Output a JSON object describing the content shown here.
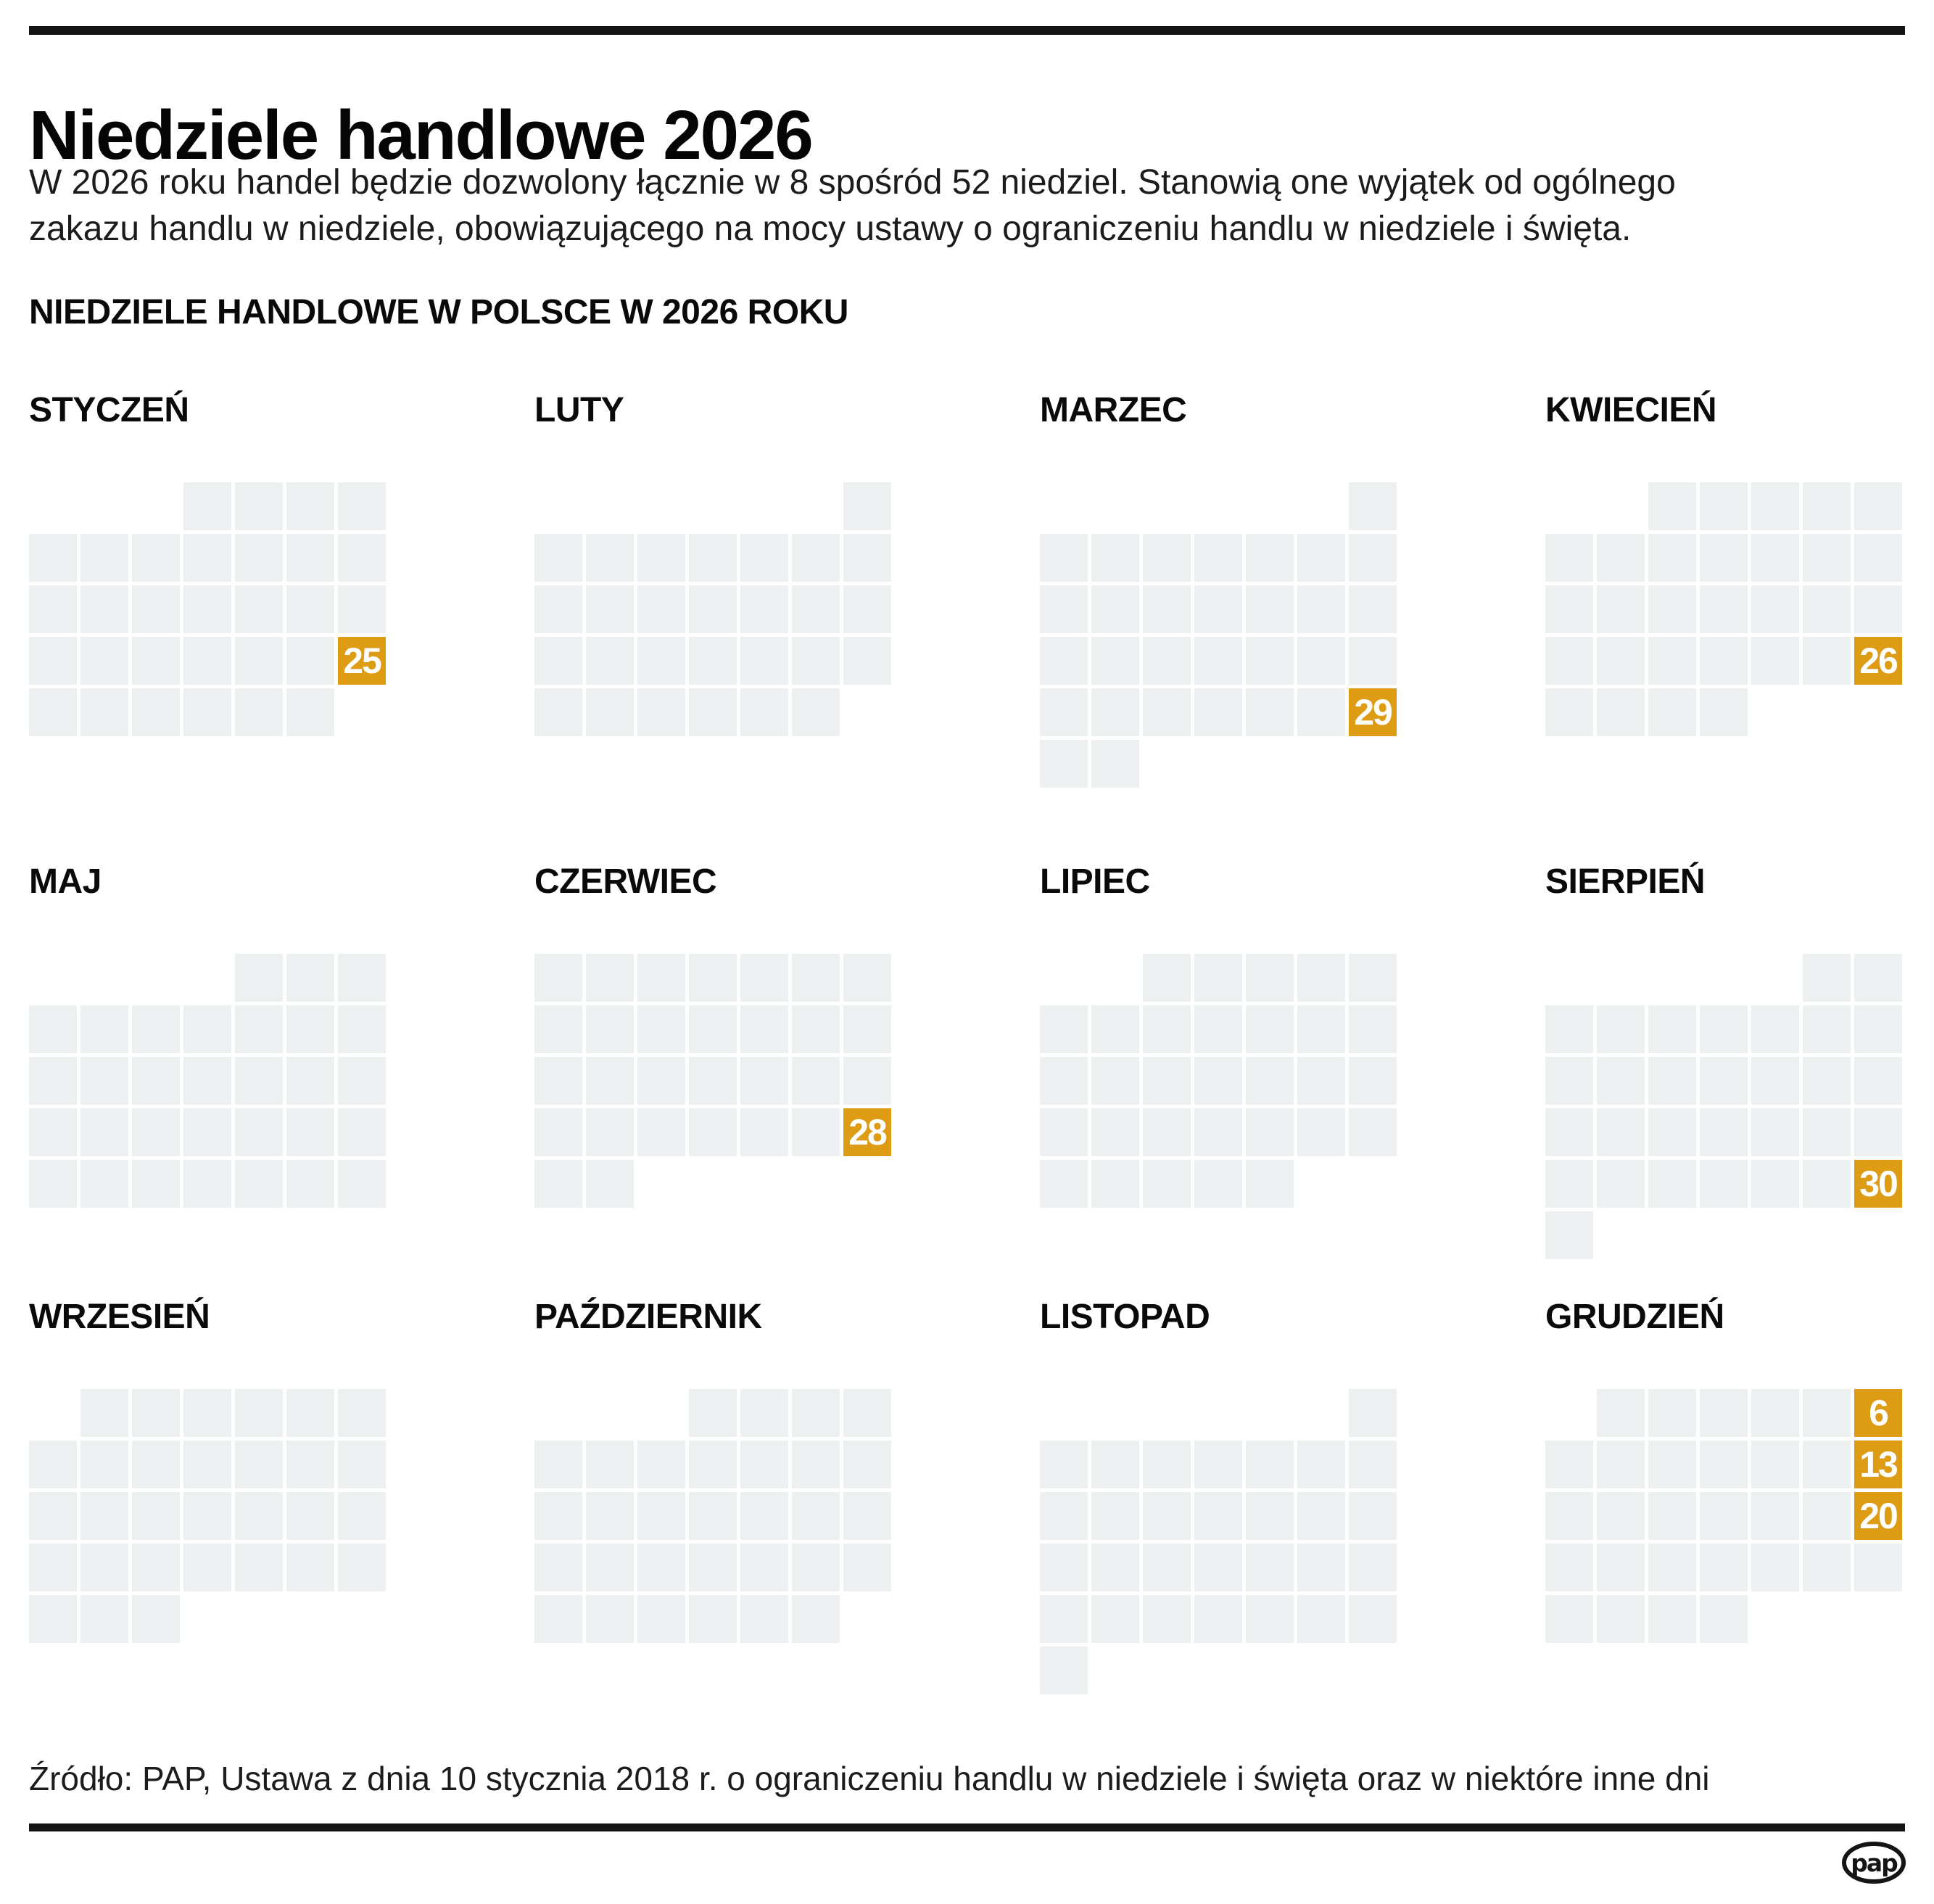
{
  "page": {
    "title": "Niedziele handlowe 2026",
    "intro_line1": "W 2026 roku handel będzie dozwolony łącznie w 8 spośród 52 niedziel. Stanowią one wyjątek od ogólnego",
    "intro_line2": "zakazu handlu w niedziele, obowiązującego na mocy ustawy o ograniczeniu handlu w niedziele i święta.",
    "section_header": "NIEDZIELE HANDLOWE W POLSCE W 2026 ROKU",
    "source": "Źródło: PAP, Ustawa z dnia 10 stycznia 2018 r. o ograniczeniu handlu w niedziele i święta oraz w niektóre inne dni",
    "logo_text": "pap"
  },
  "colors": {
    "accent_orange": "#de9b14",
    "cell_gray": "#ecf0f1",
    "bar_black": "#141414",
    "day_number_white": "#ffffff"
  },
  "chart_data": {
    "type": "calendar",
    "title": "NIEDZIELE HANDLOWE W POLSCE W 2026 ROKU",
    "year": "2026",
    "trading_sundays_count": "8",
    "all_sundays_count": "52",
    "week_starts_on": "monday",
    "trading_sundays": [
      {
        "month": "STYCZEŃ",
        "day": "25"
      },
      {
        "month": "MARZEC",
        "day": "29"
      },
      {
        "month": "KWIECIEŃ",
        "day": "26"
      },
      {
        "month": "CZERWIEC",
        "day": "28"
      },
      {
        "month": "SIERPIEŃ",
        "day": "30"
      },
      {
        "month": "GRUDZIEŃ",
        "day": "6"
      },
      {
        "month": "GRUDZIEŃ",
        "day": "13"
      },
      {
        "month": "GRUDZIEŃ",
        "day": "20"
      }
    ],
    "months": [
      {
        "name": "STYCZEŃ",
        "rows": [
          [
            4,
            4
          ],
          [
            1,
            7
          ],
          [
            1,
            7
          ],
          [
            1,
            7
          ],
          [
            1,
            6
          ]
        ],
        "highlights": [
          {
            "row": 4,
            "col": 7,
            "day": "25"
          }
        ]
      },
      {
        "name": "LUTY",
        "rows": [
          [
            7,
            1
          ],
          [
            1,
            7
          ],
          [
            1,
            7
          ],
          [
            1,
            7
          ],
          [
            1,
            6
          ]
        ],
        "highlights": []
      },
      {
        "name": "MARZEC",
        "rows": [
          [
            7,
            1
          ],
          [
            1,
            7
          ],
          [
            1,
            7
          ],
          [
            1,
            7
          ],
          [
            1,
            7
          ],
          [
            1,
            2
          ]
        ],
        "highlights": [
          {
            "row": 5,
            "col": 7,
            "day": "29"
          }
        ]
      },
      {
        "name": "KWIECIEŃ",
        "rows": [
          [
            3,
            5
          ],
          [
            1,
            7
          ],
          [
            1,
            7
          ],
          [
            1,
            7
          ],
          [
            1,
            4
          ]
        ],
        "highlights": [
          {
            "row": 4,
            "col": 7,
            "day": "26"
          }
        ]
      },
      {
        "name": "MAJ",
        "rows": [
          [
            5,
            3
          ],
          [
            1,
            7
          ],
          [
            1,
            7
          ],
          [
            1,
            7
          ],
          [
            1,
            7
          ]
        ],
        "highlights": []
      },
      {
        "name": "CZERWIEC",
        "rows": [
          [
            1,
            7
          ],
          [
            1,
            7
          ],
          [
            1,
            7
          ],
          [
            1,
            7
          ],
          [
            1,
            2
          ]
        ],
        "highlights": [
          {
            "row": 4,
            "col": 7,
            "day": "28"
          }
        ]
      },
      {
        "name": "LIPIEC",
        "rows": [
          [
            3,
            5
          ],
          [
            1,
            7
          ],
          [
            1,
            7
          ],
          [
            1,
            7
          ],
          [
            1,
            5
          ]
        ],
        "highlights": []
      },
      {
        "name": "SIERPIEŃ",
        "rows": [
          [
            6,
            2
          ],
          [
            1,
            7
          ],
          [
            1,
            7
          ],
          [
            1,
            7
          ],
          [
            1,
            7
          ],
          [
            1,
            1
          ]
        ],
        "highlights": [
          {
            "row": 5,
            "col": 7,
            "day": "30"
          }
        ]
      },
      {
        "name": "WRZESIEŃ",
        "rows": [
          [
            2,
            6
          ],
          [
            1,
            7
          ],
          [
            1,
            7
          ],
          [
            1,
            7
          ],
          [
            1,
            3
          ]
        ],
        "highlights": []
      },
      {
        "name": "PAŹDZIERNIK",
        "rows": [
          [
            4,
            4
          ],
          [
            1,
            7
          ],
          [
            1,
            7
          ],
          [
            1,
            7
          ],
          [
            1,
            6
          ]
        ],
        "highlights": []
      },
      {
        "name": "LISTOPAD",
        "rows": [
          [
            7,
            1
          ],
          [
            1,
            7
          ],
          [
            1,
            7
          ],
          [
            1,
            7
          ],
          [
            1,
            7
          ],
          [
            1,
            1
          ]
        ],
        "highlights": []
      },
      {
        "name": "GRUDZIEŃ",
        "rows": [
          [
            2,
            6
          ],
          [
            1,
            7
          ],
          [
            1,
            7
          ],
          [
            1,
            7
          ],
          [
            1,
            4
          ]
        ],
        "highlights": [
          {
            "row": 1,
            "col": 7,
            "day": "6"
          },
          {
            "row": 2,
            "col": 7,
            "day": "13"
          },
          {
            "row": 3,
            "col": 7,
            "day": "20"
          }
        ]
      }
    ]
  }
}
